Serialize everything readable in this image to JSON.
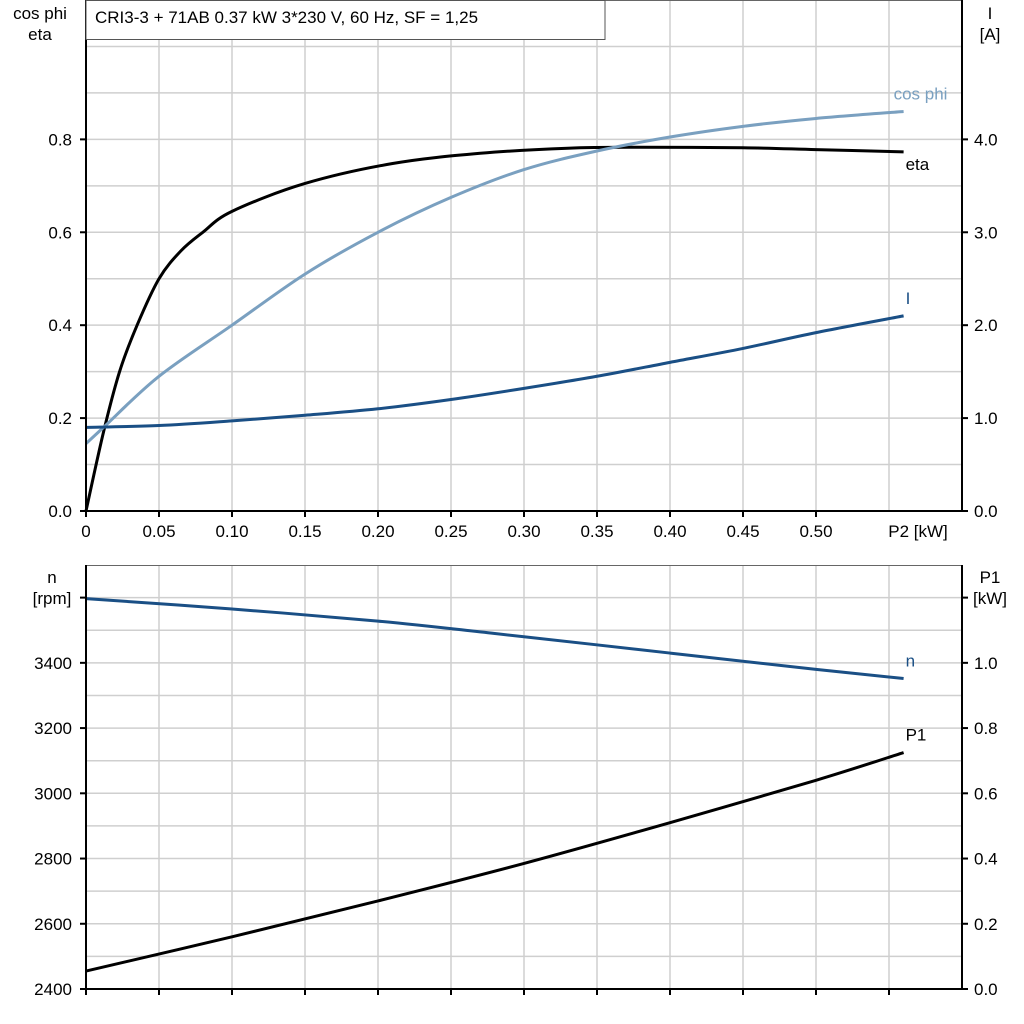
{
  "title": "CRI3-3 + 71AB   0.37 kW   3*230 V, 60 Hz, SF = 1,25",
  "chart_data": [
    {
      "type": "line",
      "left_label": [
        "cos phi",
        "eta"
      ],
      "right_label": [
        "I",
        "[A]"
      ],
      "xlabel": "P2 [kW]",
      "xlim": [
        0,
        0.6
      ],
      "ylim_left": [
        0,
        1.1
      ],
      "ylim_right": [
        0,
        5.5
      ],
      "x_ticks": [
        "0",
        "0.05",
        "0.10",
        "0.15",
        "0.20",
        "0.25",
        "0.30",
        "0.35",
        "0.40",
        "0.45",
        "0.50"
      ],
      "y_ticks_left": [
        "0.0",
        "0.2",
        "0.4",
        "0.6",
        "0.8"
      ],
      "y_ticks_right": [
        "0.0",
        "1.0",
        "2.0",
        "3.0",
        "4.0"
      ],
      "grid": true,
      "series": [
        {
          "name": "eta",
          "axis": "left",
          "color": "#000000",
          "x": [
            0,
            0.012,
            0.023,
            0.035,
            0.05,
            0.065,
            0.08,
            0.1,
            0.15,
            0.21,
            0.27,
            0.33,
            0.38,
            0.45,
            0.5,
            0.56
          ],
          "y": [
            0,
            0.17,
            0.3,
            0.4,
            0.5,
            0.56,
            0.6,
            0.645,
            0.705,
            0.748,
            0.77,
            0.781,
            0.783,
            0.782,
            0.778,
            0.773
          ]
        },
        {
          "name": "cos phi",
          "axis": "left",
          "color": "#7aa0c0",
          "x": [
            0,
            0.012,
            0.05,
            0.1,
            0.15,
            0.2,
            0.25,
            0.3,
            0.35,
            0.4,
            0.45,
            0.5,
            0.56
          ],
          "y": [
            0.145,
            0.18,
            0.29,
            0.4,
            0.51,
            0.6,
            0.675,
            0.735,
            0.775,
            0.805,
            0.828,
            0.845,
            0.86
          ]
        },
        {
          "name": "I",
          "axis": "right",
          "color": "#1a4f85",
          "x": [
            0,
            0.05,
            0.1,
            0.15,
            0.2,
            0.25,
            0.3,
            0.35,
            0.4,
            0.45,
            0.5,
            0.56
          ],
          "y": [
            0.9,
            0.92,
            0.97,
            1.03,
            1.1,
            1.2,
            1.32,
            1.45,
            1.6,
            1.75,
            1.92,
            2.1
          ]
        }
      ]
    },
    {
      "type": "line",
      "left_label": [
        "n",
        "[rpm]"
      ],
      "right_label": [
        "P1",
        "[kW]"
      ],
      "xlim": [
        0,
        0.6
      ],
      "ylim_left": [
        2400,
        3700
      ],
      "ylim_right": [
        0,
        1.3
      ],
      "y_ticks_left": [
        "2400",
        "2600",
        "2800",
        "3000",
        "3200",
        "3400"
      ],
      "y_ticks_right": [
        "0.0",
        "0.2",
        "0.4",
        "0.6",
        "0.8",
        "1.0"
      ],
      "grid": true,
      "series": [
        {
          "name": "n",
          "axis": "left",
          "color": "#1a4f85",
          "x": [
            0,
            0.1,
            0.2,
            0.28,
            0.4,
            0.5,
            0.56
          ],
          "y": [
            3597,
            3565,
            3528,
            3490,
            3430,
            3380,
            3352
          ]
        },
        {
          "name": "P1",
          "axis": "right",
          "color": "#000000",
          "x": [
            0,
            0.1,
            0.2,
            0.3,
            0.4,
            0.5,
            0.56
          ],
          "y": [
            0.055,
            0.16,
            0.27,
            0.385,
            0.51,
            0.64,
            0.725
          ]
        }
      ]
    }
  ]
}
